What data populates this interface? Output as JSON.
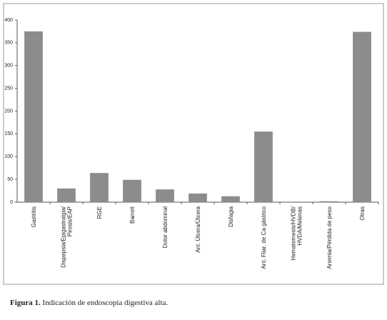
{
  "chart_data": {
    "type": "bar",
    "categories": [
      "Gastritis",
      "Dispepsia/Epigastralgia/\nPirosis/EAP",
      "RGE",
      "Barrett",
      "Dolor abdominal",
      "Ant. Úlcera/Úlcera",
      "Disfagia",
      "Ant. Fliar. de Ca gástrico",
      "Hematemesis/HVDB/\nHVDA/Melenas",
      "Anemia/Pérdida de peso",
      "Otras"
    ],
    "values": [
      375,
      30,
      64,
      49,
      28,
      19,
      13,
      155,
      0,
      2,
      374
    ],
    "color": "#8c8c8c",
    "ylim": [
      0,
      400
    ],
    "yticks": [
      0,
      50,
      100,
      150,
      200,
      250,
      300,
      350,
      400
    ],
    "grid": false,
    "caption_label": "Figura 1.",
    "caption": "Indicación de endoscopia digestiva alta."
  }
}
